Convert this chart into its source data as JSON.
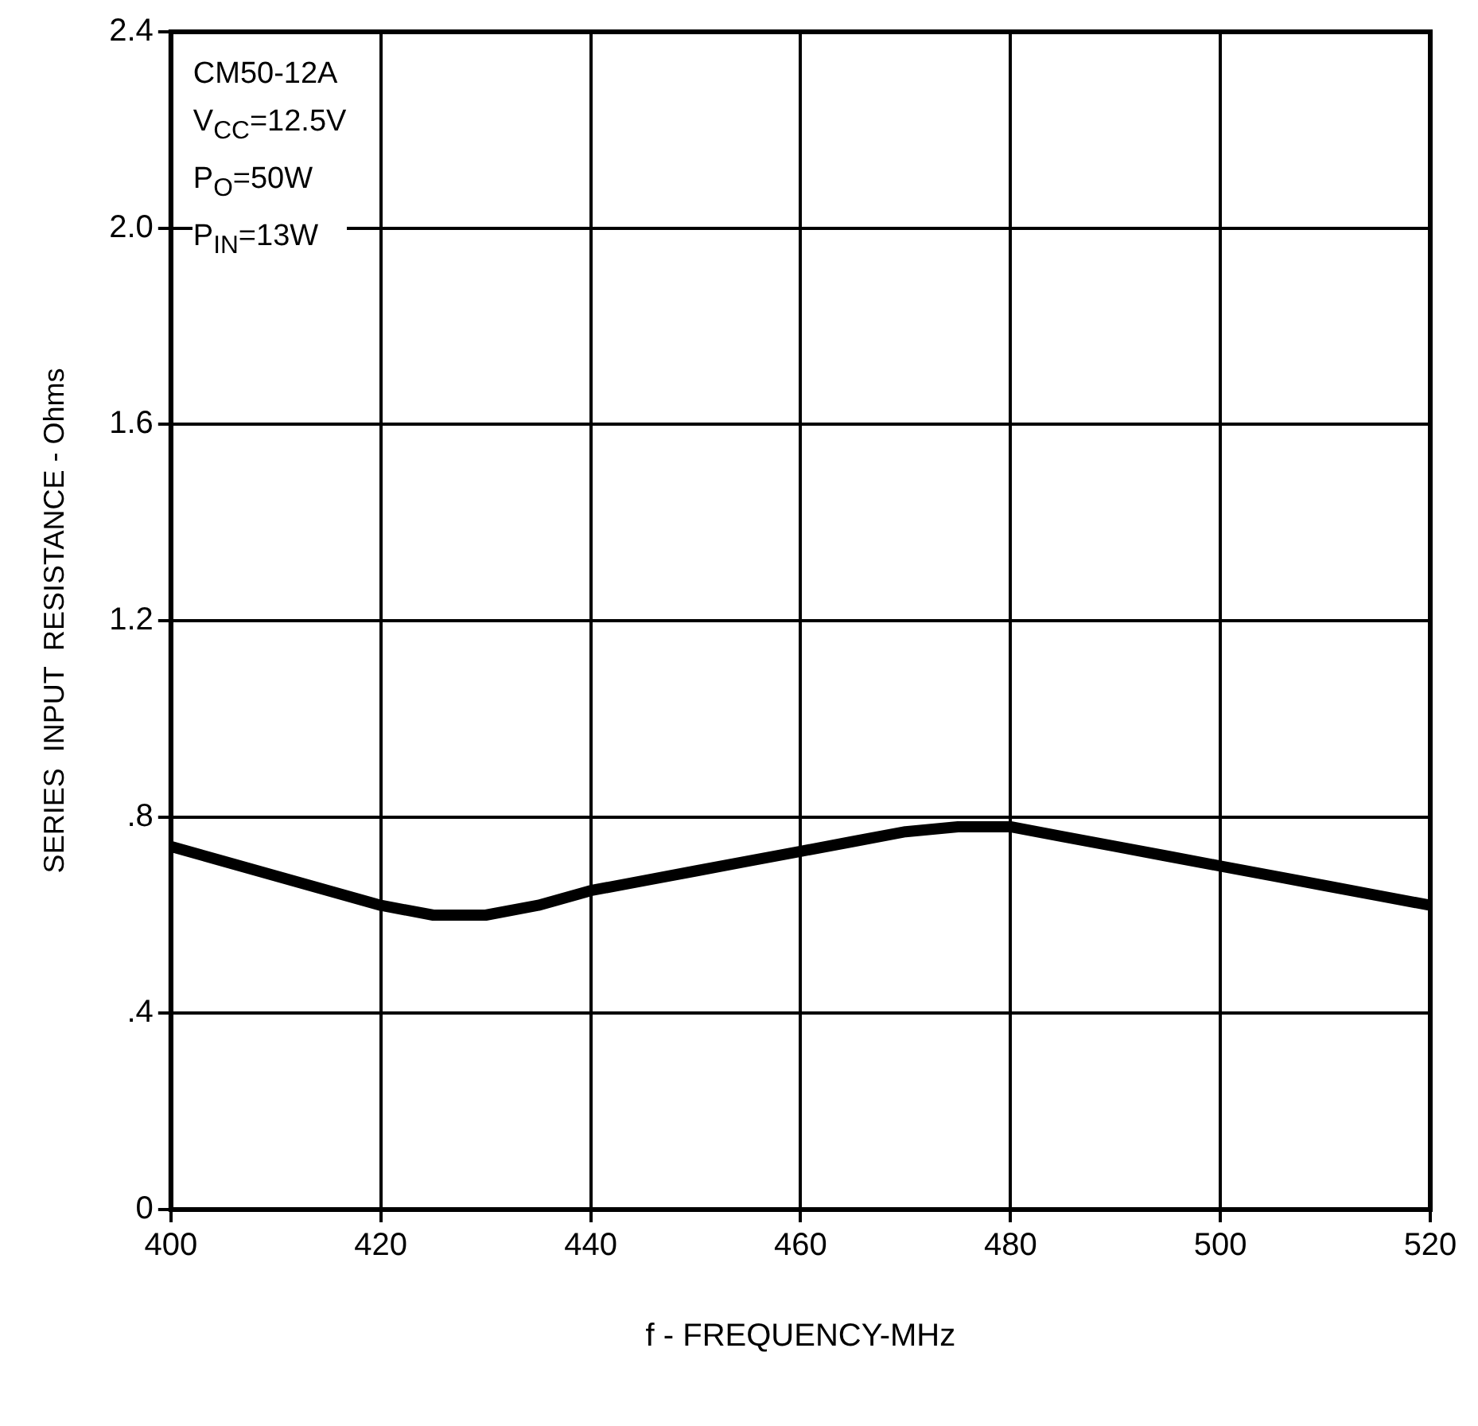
{
  "chart_data": {
    "type": "line",
    "xlabel": "f - FREQUENCY-MHz",
    "ylabel": "SERIES  INPUT  RESISTANCE - Ohms",
    "annotations": [
      "CM50-12A",
      "V$_{CC}$=12.5V",
      "P$_{O}$=50W",
      "P$_{IN}$=13W"
    ],
    "x": [
      400,
      405,
      410,
      415,
      420,
      425,
      430,
      435,
      440,
      445,
      450,
      455,
      460,
      465,
      470,
      475,
      480,
      485,
      490,
      495,
      500,
      505,
      510,
      515,
      520
    ],
    "series": [
      {
        "color": "#000000",
        "values": [
          0.74,
          0.71,
          0.68,
          0.65,
          0.62,
          0.6,
          0.6,
          0.62,
          0.65,
          0.67,
          0.69,
          0.71,
          0.73,
          0.75,
          0.77,
          0.78,
          0.78,
          0.76,
          0.74,
          0.72,
          0.7,
          0.68,
          0.66,
          0.64,
          0.62
        ]
      }
    ],
    "xlim": [
      400,
      520
    ],
    "xticks": [
      400,
      420,
      440,
      460,
      480,
      500,
      520
    ],
    "ylim": [
      0,
      2.4
    ],
    "yticks": [
      {
        "value": 0,
        "label": "0"
      },
      {
        "value": 0.4,
        "label": ".4"
      },
      {
        "value": 0.8,
        "label": ".8"
      },
      {
        "value": 1.2,
        "label": "1.2"
      },
      {
        "value": 1.6,
        "label": "1.6"
      },
      {
        "value": 2.0,
        "label": "2.0"
      },
      {
        "value": 2.4,
        "label": "2.4"
      }
    ],
    "grid": true,
    "legend": false,
    "marker": "none",
    "line_style": "solid"
  }
}
